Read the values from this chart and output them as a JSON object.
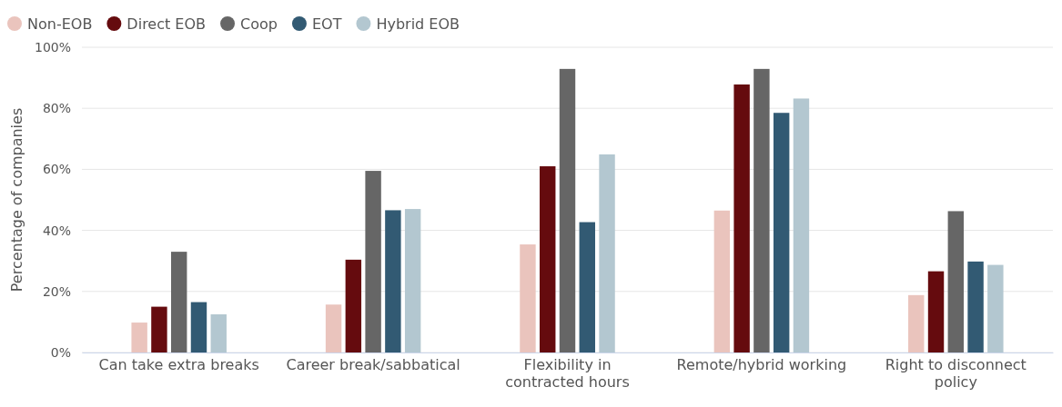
{
  "chart_data": {
    "type": "bar",
    "ylabel": "Percentage of companies",
    "categories": [
      "Can take extra breaks",
      "Career break/sabbatical",
      "Flexibility in contracted hours",
      "Remote/hybrid working",
      "Right to disconnect policy"
    ],
    "series": [
      {
        "name": "Non-EOB",
        "color": "#eac4bd",
        "values": [
          9.8,
          15.7,
          35.4,
          46.5,
          18.8
        ]
      },
      {
        "name": "Direct EOB",
        "color": "#650b0e",
        "values": [
          15,
          30.4,
          61,
          87.8,
          26.6
        ]
      },
      {
        "name": "Coop",
        "color": "#666666",
        "values": [
          33,
          59.5,
          92.9,
          92.9,
          46.3
        ]
      },
      {
        "name": "EOT",
        "color": "#325a73",
        "values": [
          16.5,
          46.6,
          42.7,
          78.5,
          29.8
        ]
      },
      {
        "name": "Hybrid EOB",
        "color": "#b3c7d0",
        "values": [
          12.5,
          47,
          64.9,
          83.2,
          28.7
        ]
      }
    ],
    "ylim": [
      0,
      100
    ],
    "yticks": [
      {
        "value": 0,
        "label": "0%"
      },
      {
        "value": 20,
        "label": "20%"
      },
      {
        "value": 40,
        "label": "40%"
      },
      {
        "value": 60,
        "label": "60%"
      },
      {
        "value": 80,
        "label": "80%"
      },
      {
        "value": 100,
        "label": "100%"
      }
    ],
    "grid": "y",
    "legend": "top left"
  }
}
